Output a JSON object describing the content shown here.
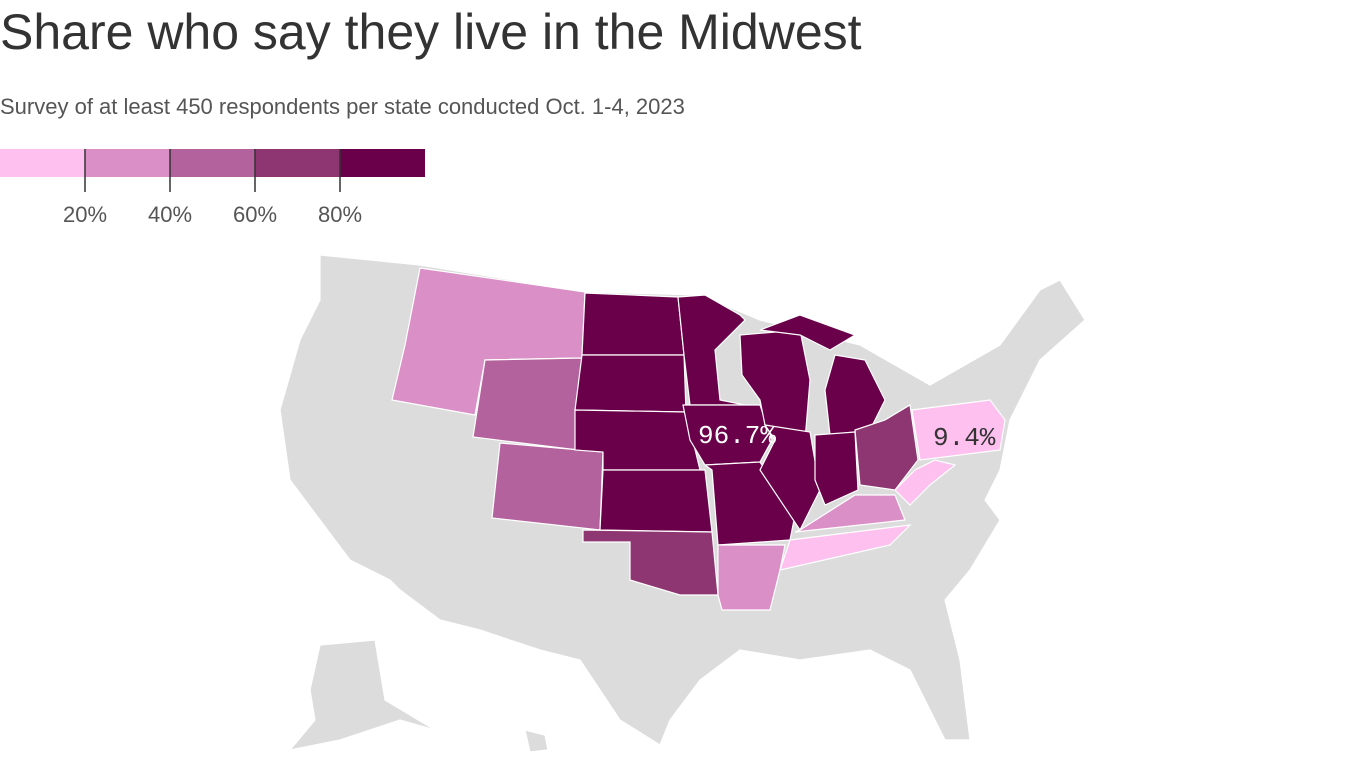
{
  "chart_data": {
    "type": "choropleth",
    "title": "Share who say they live in the Midwest",
    "subtitle": "Survey of at least 450 respondents per state conducted Oct. 1-4, 2023",
    "legend": {
      "colors": [
        "#fec0ef",
        "#da8fc7",
        "#b3629d",
        "#8d3671",
        "#6a004a"
      ],
      "range": [
        0,
        100
      ],
      "ticks": [
        {
          "value": 20,
          "label": "20%"
        },
        {
          "value": 40,
          "label": "40%"
        },
        {
          "value": 60,
          "label": "60%"
        },
        {
          "value": 80,
          "label": "80%"
        }
      ]
    },
    "annotations": [
      {
        "value": 96.7,
        "label": "96.7%"
      },
      {
        "value": 9.4,
        "label": "9.4%"
      }
    ]
  }
}
